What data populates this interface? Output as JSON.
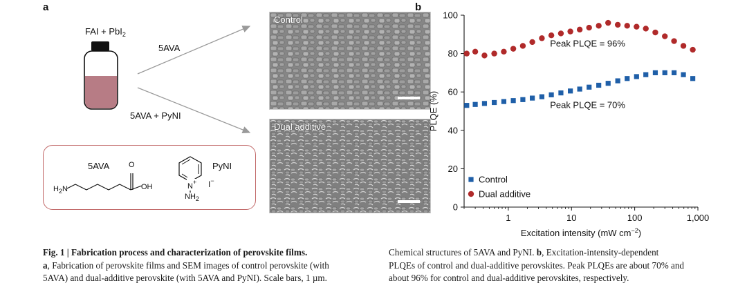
{
  "panel_a": {
    "letter": "a",
    "reagent": "FAI + PbI",
    "reagent_sub": "2",
    "arrow_top_label": "5AVA",
    "arrow_bottom_label": "5AVA + PyNI",
    "sem_top_label": "Control",
    "sem_bottom_label": "Dual additive",
    "chem": {
      "ava_name": "5AVA",
      "ava_o": "O",
      "ava_oh": "OH",
      "ava_h2n": "H",
      "ava_h2n_sub": "2",
      "ava_h2n_n": "N",
      "pyni_name": "PyNI",
      "pyni_n": "N",
      "pyni_plus": "+",
      "pyni_iodide": "I",
      "pyni_iodide_charge": "−",
      "pyni_nh2": "NH",
      "pyni_nh2_sub": "2"
    },
    "colors": {
      "vial_liquid": "#b77c85",
      "vial_cap": "#111111",
      "box_border": "#c26a6a",
      "arrow": "#9a9a9a"
    }
  },
  "panel_b": {
    "letter": "b"
  },
  "chart_data": {
    "type": "scatter",
    "x_scale": "log",
    "xlabel": "Excitation intensity (mW cm",
    "xlabel_sup": "−2",
    "xlabel_close": ")",
    "ylabel": "PLQE (%)",
    "xlim": [
      0.2,
      1000
    ],
    "ylim": [
      0,
      100
    ],
    "x_ticks": [
      {
        "value": 1,
        "label": "1"
      },
      {
        "value": 10,
        "label": "10"
      },
      {
        "value": 100,
        "label": "100"
      },
      {
        "value": 1000,
        "label": "1,000"
      }
    ],
    "y_ticks": [
      {
        "value": 0,
        "label": "0"
      },
      {
        "value": 20,
        "label": "20"
      },
      {
        "value": 40,
        "label": "40"
      },
      {
        "value": 60,
        "label": "60"
      },
      {
        "value": 80,
        "label": "80"
      },
      {
        "value": 100,
        "label": "100"
      }
    ],
    "legend_position": "bottom-left",
    "series": [
      {
        "name": "Control",
        "marker": "square",
        "color": "#1f5fa8",
        "x": [
          0.22,
          0.3,
          0.42,
          0.6,
          0.85,
          1.2,
          1.7,
          2.4,
          3.4,
          4.8,
          6.8,
          9.6,
          13.5,
          19,
          27,
          38,
          54,
          76,
          107,
          150,
          212,
          300,
          420,
          590,
          830
        ],
        "y": [
          53,
          53.5,
          54,
          54.5,
          55,
          55.5,
          56,
          56.8,
          57.5,
          58.5,
          59.5,
          60.5,
          61.5,
          62.5,
          63.5,
          64.5,
          65.8,
          67,
          68,
          69,
          70,
          70,
          70,
          69,
          67
        ]
      },
      {
        "name": "Dual additive",
        "marker": "circle",
        "color": "#b02a2a",
        "x": [
          0.22,
          0.3,
          0.42,
          0.6,
          0.85,
          1.2,
          1.7,
          2.4,
          3.4,
          4.8,
          6.8,
          9.6,
          13.5,
          19,
          27,
          38,
          54,
          76,
          107,
          150,
          212,
          300,
          420,
          590,
          830
        ],
        "y": [
          80,
          81,
          79,
          80,
          81,
          82.5,
          84,
          86,
          88,
          89.5,
          90.5,
          91.5,
          92.5,
          93.5,
          94.5,
          96,
          95,
          94.5,
          94,
          93,
          91,
          89,
          86.5,
          84,
          82
        ]
      }
    ],
    "annotations": [
      {
        "text": "Peak PLQE = 96%",
        "x": 18,
        "y": 85
      },
      {
        "text": "Peak PLQE = 70%",
        "x": 18,
        "y": 53
      }
    ]
  },
  "caption": {
    "left_title": "Fig. 1 | Fabrication process and characterization of perovskite films.",
    "left_line1_label": "a",
    "left_line1": ", Fabrication of perovskite films and SEM images of control perovskite (with",
    "left_line2": "5AVA) and dual-additive perovskite (with 5AVA and PyNI). Scale bars, 1 µm.",
    "right_line1": "Chemical structures of 5AVA and PyNI.",
    "right_line1_label": "b",
    "right_line1_rest": ", Excitation-intensity-dependent",
    "right_line2": "PLQEs of control and dual-additive perovskites. Peak PLQEs are about 70% and",
    "right_line3": "about 96% for control and dual-additive perovskites, respectively."
  }
}
